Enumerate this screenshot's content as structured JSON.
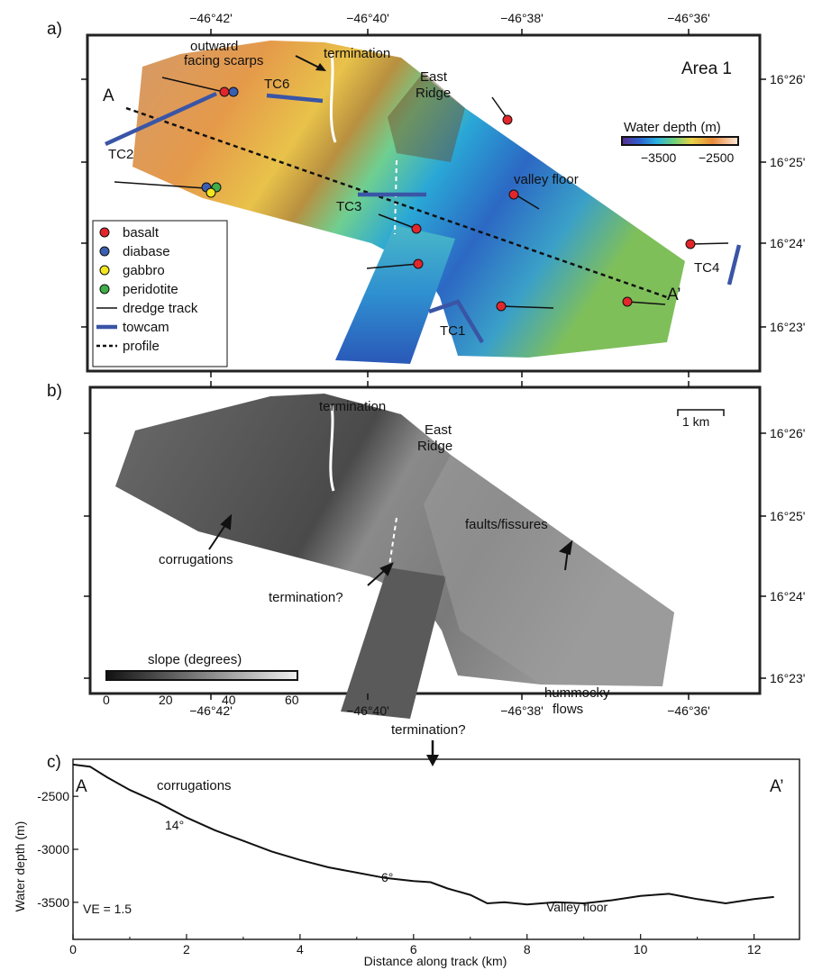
{
  "panels": {
    "a": {
      "label": "a)",
      "area_title": "Area 1",
      "lon_ticks": [
        "−46°42'",
        "−46°40'",
        "−46°38'",
        "−46°36'"
      ],
      "lat_ticks": [
        "16°26'",
        "16°25'",
        "16°24'",
        "16°23'"
      ],
      "annotations": {
        "outward_line1": "outward",
        "outward_line2": "facing scarps",
        "termination": "termination",
        "east_line1": "East",
        "east_line2": "Ridge",
        "valley_floor": "valley floor",
        "A": "A",
        "A_prime": "A’"
      },
      "towcams": [
        "TC1",
        "TC2",
        "TC3",
        "TC4",
        "TC6"
      ],
      "colorbar": {
        "title": "Water depth (m)",
        "ticks": [
          "−3500",
          "−2500"
        ]
      },
      "legend": [
        {
          "label": "basalt",
          "kind": "dot",
          "color": "#e3262b"
        },
        {
          "label": "diabase",
          "kind": "dot",
          "color": "#3a5fb0"
        },
        {
          "label": "gabbro",
          "kind": "dot",
          "color": "#f2e61f"
        },
        {
          "label": "peridotite",
          "kind": "dot",
          "color": "#3fae49"
        },
        {
          "label": "dredge track",
          "kind": "line",
          "color": "#111111"
        },
        {
          "label": "towcam",
          "kind": "thick",
          "color": "#3a55a6"
        },
        {
          "label": "profile",
          "kind": "dash",
          "color": "#111111"
        }
      ]
    },
    "b": {
      "label": "b)",
      "lon_ticks": [
        "−46°42'",
        "−46°40'",
        "−46°38'",
        "−46°36'"
      ],
      "lat_ticks": [
        "16°26'",
        "16°25'",
        "16°24'",
        "16°23'"
      ],
      "annotations": {
        "termination": "termination",
        "east_line1": "East",
        "east_line2": "Ridge",
        "faults": "faults/fissures",
        "corrugations": "corrugations",
        "termination_q": "termination?",
        "hummocky_line1": "hummocky",
        "hummocky_line2": "flows"
      },
      "scale_bar": "1 km",
      "slope_bar": {
        "title": "slope (degrees)",
        "ticks": [
          "0",
          "20",
          "40",
          "60"
        ]
      }
    },
    "c": {
      "label": "c)",
      "annotations": {
        "A": "A",
        "A_prime": "A’",
        "corrugations": "corrugations",
        "angle1": "14°",
        "angle2": "6°",
        "termination_q": "termination?",
        "ve": "VE = 1.5",
        "valley_floor": "Valley floor"
      }
    }
  },
  "chart_data": {
    "type": "line",
    "xlabel": "Distance along track (km)",
    "ylabel": "Water depth (m)",
    "xlim": [
      0,
      12.8
    ],
    "ylim": [
      -3850,
      -2150
    ],
    "x_ticks": [
      "0",
      "2",
      "4",
      "6",
      "8",
      "10",
      "12"
    ],
    "y_ticks": [
      "-2500",
      "-3000",
      "-3500"
    ],
    "series": [
      {
        "x": [
          0,
          0.3,
          0.6,
          1.0,
          1.5,
          2.0,
          2.5,
          3.0,
          3.5,
          4.0,
          4.5,
          5.0,
          5.5,
          6.0,
          6.3,
          6.6,
          7.0,
          7.3,
          7.6,
          8.0,
          8.5,
          9.0,
          9.5,
          10.0,
          10.5,
          11.0,
          11.5,
          12.0,
          12.35
        ],
        "y": [
          -2200,
          -2220,
          -2320,
          -2440,
          -2560,
          -2700,
          -2820,
          -2920,
          -3020,
          -3100,
          -3170,
          -3220,
          -3270,
          -3300,
          -3310,
          -3370,
          -3430,
          -3510,
          -3500,
          -3520,
          -3500,
          -3510,
          -3480,
          -3440,
          -3420,
          -3470,
          -3510,
          -3470,
          -3450
        ]
      }
    ]
  },
  "colors": {
    "towcam": "#3a55a6",
    "basalt": "#e3262b",
    "diabase": "#3a5fb0",
    "gabbro": "#f2e61f",
    "peridotite": "#3fae49"
  }
}
